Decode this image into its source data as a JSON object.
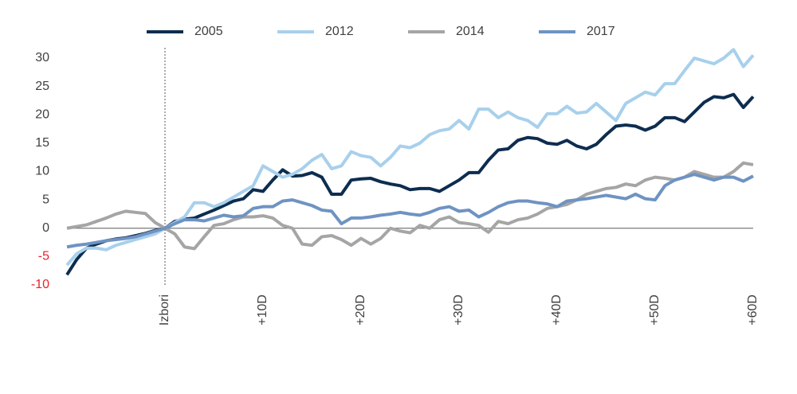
{
  "chart_data": {
    "type": "line",
    "x": [
      -10,
      -9,
      -8,
      -7,
      -6,
      -5,
      -4,
      -3,
      -2,
      -1,
      0,
      1,
      2,
      3,
      4,
      5,
      6,
      7,
      8,
      9,
      10,
      11,
      12,
      13,
      14,
      15,
      16,
      17,
      18,
      19,
      20,
      21,
      22,
      23,
      24,
      25,
      26,
      27,
      28,
      29,
      30,
      31,
      32,
      33,
      34,
      35,
      36,
      37,
      38,
      39,
      40,
      41,
      42,
      43,
      44,
      45,
      46,
      47,
      48,
      49,
      50,
      51,
      52,
      53,
      54,
      55,
      56,
      57,
      58,
      59,
      60
    ],
    "series": [
      {
        "name": "2005",
        "color": "#0d2d4f",
        "values": [
          -8.2,
          -5.5,
          -3.5,
          -2.8,
          -2.2,
          -1.9,
          -1.7,
          -1.3,
          -0.9,
          -0.4,
          0,
          1.2,
          1.6,
          1.8,
          2.5,
          3.2,
          4,
          4.8,
          5.2,
          6.8,
          6.5,
          8.5,
          10.3,
          9.2,
          9.3,
          9.8,
          9,
          6,
          6,
          8.5,
          8.7,
          8.8,
          8.2,
          7.8,
          7.5,
          6.8,
          7,
          7,
          6.5,
          7.5,
          8.5,
          9.8,
          9.8,
          12,
          13.8,
          14,
          15.5,
          16,
          15.8,
          15,
          14.8,
          15.5,
          14.5,
          14,
          14.8,
          16.5,
          18,
          18.2,
          18,
          17.3,
          18,
          19.5,
          19.5,
          18.8,
          20.5,
          22.2,
          23.2,
          23,
          23.6,
          21.3,
          23.2
        ]
      },
      {
        "name": "2012",
        "color": "#a8d0ec",
        "values": [
          -6.5,
          -4.5,
          -3.5,
          -3.5,
          -3.8,
          -3,
          -2.5,
          -2,
          -1.5,
          -1,
          0,
          1,
          2,
          4.5,
          4.5,
          3.8,
          4.5,
          5.5,
          6.5,
          7.5,
          11,
          10,
          9,
          9.5,
          10.5,
          12,
          13,
          10.5,
          11,
          13.5,
          12.8,
          12.5,
          11,
          12.5,
          14.5,
          14.2,
          15,
          16.5,
          17.2,
          17.5,
          19,
          17.5,
          21,
          21,
          19.5,
          20.5,
          19.5,
          19,
          17.8,
          20.2,
          20.2,
          21.5,
          20.3,
          20.5,
          22,
          20.5,
          19,
          22,
          23,
          24,
          23.5,
          25.5,
          25.5,
          27.8,
          30,
          29.5,
          29,
          30,
          31.5,
          28.5,
          30.5
        ]
      },
      {
        "name": "2014",
        "color": "#a5a5a5",
        "values": [
          0,
          0.3,
          0.6,
          1.2,
          1.8,
          2.5,
          3,
          2.8,
          2.6,
          1,
          0,
          -1,
          -3.3,
          -3.6,
          -1.5,
          0.5,
          0.8,
          1.5,
          2,
          2,
          2.2,
          1.8,
          0.5,
          0,
          -2.8,
          -3,
          -1.5,
          -1.3,
          -2,
          -3,
          -1.8,
          -2.8,
          -1.8,
          0,
          -0.5,
          -0.8,
          0.5,
          0,
          1.5,
          2,
          1,
          0.8,
          0.5,
          -0.7,
          1.2,
          0.8,
          1.5,
          1.8,
          2.5,
          3.5,
          3.8,
          4.2,
          5,
          6,
          6.5,
          7,
          7.2,
          7.8,
          7.5,
          8.5,
          9,
          8.8,
          8.5,
          9,
          10,
          9.5,
          9,
          9,
          10,
          11.5,
          11.2
        ]
      },
      {
        "name": "2017",
        "color": "#6e93c3",
        "values": [
          -3.3,
          -3,
          -2.8,
          -2.5,
          -2.2,
          -2,
          -1.8,
          -1.5,
          -1,
          -0.5,
          0,
          0.8,
          1.5,
          1.5,
          1.3,
          1.8,
          2.3,
          2,
          2.2,
          3.5,
          3.8,
          3.8,
          4.8,
          5,
          4.5,
          4,
          3.2,
          3,
          0.8,
          1.8,
          1.8,
          2,
          2.3,
          2.5,
          2.8,
          2.5,
          2.3,
          2.8,
          3.5,
          3.8,
          3,
          3.2,
          2,
          2.8,
          3.8,
          4.5,
          4.8,
          4.8,
          4.5,
          4.3,
          3.8,
          4.8,
          5,
          5.2,
          5.5,
          5.8,
          5.5,
          5.2,
          6,
          5.2,
          5,
          7.5,
          8.5,
          9,
          9.5,
          9,
          8.5,
          9,
          9,
          8.3,
          9.2
        ]
      }
    ],
    "xlim": [
      -10,
      60
    ],
    "xticks": [
      {
        "value": 0,
        "label": "Izbori"
      },
      {
        "value": 10,
        "label": "+10D"
      },
      {
        "value": 20,
        "label": "+20D"
      },
      {
        "value": 30,
        "label": "+30D"
      },
      {
        "value": 40,
        "label": "+40D"
      },
      {
        "value": 50,
        "label": "+50D"
      },
      {
        "value": 60,
        "label": "+60D"
      }
    ],
    "ylim": [
      -10,
      30
    ],
    "yticks": [
      -10,
      -5,
      0,
      5,
      10,
      15,
      20,
      25,
      30
    ],
    "negative_tick_color": "#e8202a",
    "zero_line": true,
    "reference_x": 0,
    "legend": "top"
  }
}
